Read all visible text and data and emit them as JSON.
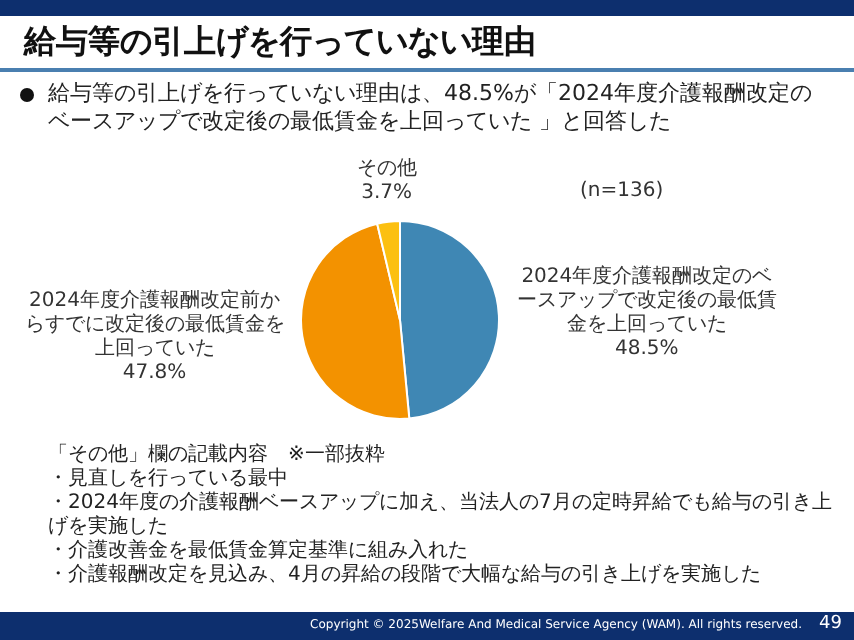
{
  "chart_data": {
    "type": "pie",
    "title": "給与等の引上げを行っていない理由",
    "subtitle": "給与等の引上げを行っていない理由は、48.5%が「2024年度介護報酬改定のベースアップで改定後の最低賃金を上回っていた 」と回答した",
    "categories": [
      "2024年度介護報酬改定のベースアップで改定後の最低賃金を上回っていた",
      "2024年度介護報酬改定前からすでに改定後の最低賃金を上回っていた",
      "その他"
    ],
    "values": [
      48.5,
      47.8,
      3.7
    ],
    "colors": [
      "#3f87b4",
      "#f39200",
      "#fcc010"
    ],
    "value_labels": [
      "48.5%",
      "47.8%",
      "3.7%"
    ],
    "annotations": [
      "(n=136)",
      "「その他」欄の記載内容　※一部抜粋",
      "・見直しを行っている最中",
      "・2024年度の介護報酬ベースアップに加え、当法人の7月の定時昇給でも給与の引き上げを実施した",
      "・介護改善金を最低賃金算定基準に組み入れた",
      "・介護報酬改定を見込み、4月の昇給の段階で大幅な給与の引き上げを実施した",
      "Copyright © 2025Welfare And Medical Service Agency (WAM). All rights reserved.",
      "49"
    ],
    "legend": false
  }
}
